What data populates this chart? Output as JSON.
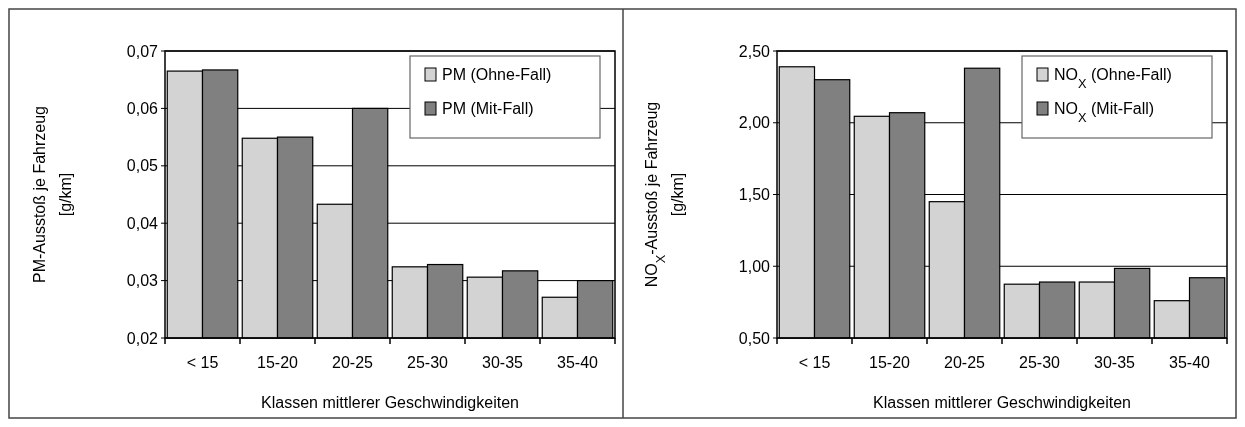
{
  "chart_data": [
    {
      "type": "bar",
      "xlabel": "Klassen mittlerer Geschwindigkeiten",
      "ylabel": "PM-Ausstoß je Fahrzeug\n[g/km]",
      "categories": [
        "< 15",
        "15-20",
        "20-25",
        "25-30",
        "30-35",
        "35-40"
      ],
      "series": [
        {
          "name": "PM (Ohne-Fall)",
          "color": "#d3d3d3",
          "values": [
            0.0665,
            0.0548,
            0.0433,
            0.0324,
            0.0306,
            0.0271
          ]
        },
        {
          "name": "PM (Mit-Fall)",
          "color": "#808080",
          "values": [
            0.0667,
            0.055,
            0.06,
            0.0328,
            0.0317,
            0.03
          ]
        }
      ],
      "ylim": [
        0.02,
        0.07
      ],
      "yticks": [
        {
          "value": 0.02,
          "label": "0,02"
        },
        {
          "value": 0.03,
          "label": "0,03"
        },
        {
          "value": 0.04,
          "label": "0,04"
        },
        {
          "value": 0.05,
          "label": "0,05"
        },
        {
          "value": 0.06,
          "label": "0,06"
        },
        {
          "value": 0.07,
          "label": "0,07"
        }
      ],
      "grid": "y",
      "legend": "top right"
    },
    {
      "type": "bar",
      "xlabel": "Klassen mittlerer Geschwindigkeiten",
      "ylabel": "NO$_{X}$-Ausstoß je Fahrzeug\n[g/km]",
      "categories": [
        "< 15",
        "15-20",
        "20-25",
        "25-30",
        "30-35",
        "35-40"
      ],
      "series": [
        {
          "name": "NO$_{X}$ (Ohne-Fall)",
          "color": "#d3d3d3",
          "values": [
            2.39,
            2.045,
            1.45,
            0.875,
            0.89,
            0.76
          ]
        },
        {
          "name": "NO$_{X}$ (Mit-Fall)",
          "color": "#808080",
          "values": [
            2.3,
            2.07,
            2.38,
            0.89,
            0.985,
            0.92
          ]
        }
      ],
      "ylim": [
        0.5,
        2.5
      ],
      "yticks": [
        {
          "value": 0.5,
          "label": "0,50"
        },
        {
          "value": 1,
          "label": "1,00"
        },
        {
          "value": 1.5,
          "label": "1,50"
        },
        {
          "value": 2,
          "label": "2,00"
        },
        {
          "value": 2.5,
          "label": "2,50"
        }
      ],
      "grid": "y",
      "legend": "top right"
    }
  ]
}
